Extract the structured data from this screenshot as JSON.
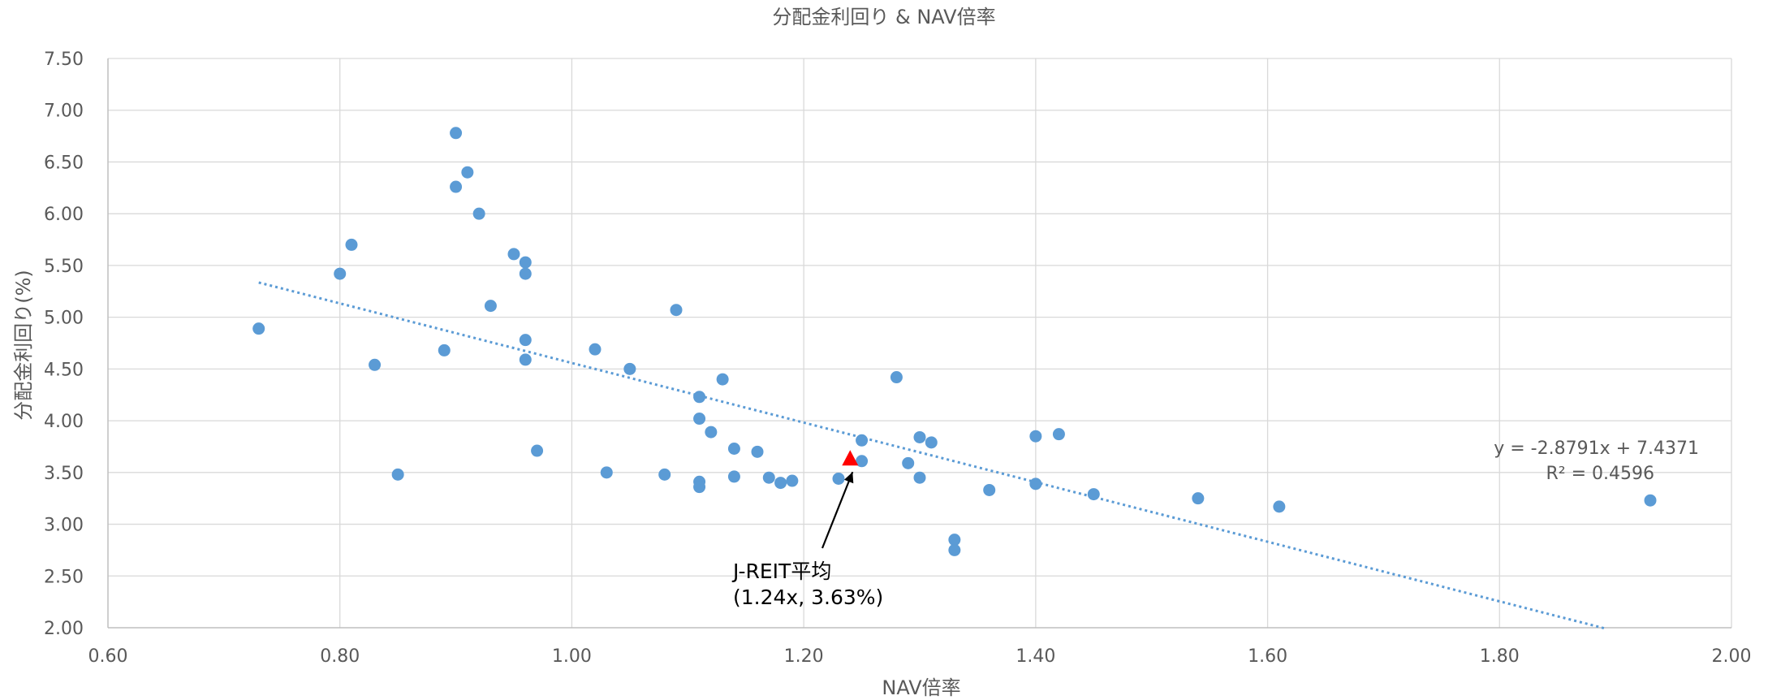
{
  "chart_data": {
    "type": "scatter",
    "title": "分配金利回り & NAV倍率",
    "xlabel": "NAV倍率",
    "ylabel": "分配金利回り(%)",
    "xlim": [
      0.6,
      2.0
    ],
    "ylim": [
      2.0,
      7.5
    ],
    "x_ticks": [
      "0.60",
      "0.80",
      "1.00",
      "1.20",
      "1.40",
      "1.60",
      "1.80",
      "2.00"
    ],
    "y_ticks": [
      "2.00",
      "2.50",
      "3.00",
      "3.50",
      "4.00",
      "4.50",
      "5.00",
      "5.50",
      "6.00",
      "6.50",
      "7.00",
      "7.50"
    ],
    "grid": true,
    "point_color": "#5B9BD5",
    "highlight_color": "#FF0000",
    "trendline_color": "#5B9BD5",
    "points": [
      {
        "x": 0.73,
        "y": 4.89
      },
      {
        "x": 0.8,
        "y": 5.42
      },
      {
        "x": 0.81,
        "y": 5.7
      },
      {
        "x": 0.83,
        "y": 4.54
      },
      {
        "x": 0.85,
        "y": 3.48
      },
      {
        "x": 0.89,
        "y": 4.68
      },
      {
        "x": 0.9,
        "y": 6.78
      },
      {
        "x": 0.9,
        "y": 6.26
      },
      {
        "x": 0.91,
        "y": 6.4
      },
      {
        "x": 0.92,
        "y": 6.0
      },
      {
        "x": 0.93,
        "y": 5.11
      },
      {
        "x": 0.95,
        "y": 5.61
      },
      {
        "x": 0.96,
        "y": 5.53
      },
      {
        "x": 0.96,
        "y": 5.42
      },
      {
        "x": 0.96,
        "y": 4.78
      },
      {
        "x": 0.96,
        "y": 4.59
      },
      {
        "x": 0.97,
        "y": 3.71
      },
      {
        "x": 1.02,
        "y": 4.69
      },
      {
        "x": 1.03,
        "y": 3.5
      },
      {
        "x": 1.05,
        "y": 4.5
      },
      {
        "x": 1.08,
        "y": 3.48
      },
      {
        "x": 1.09,
        "y": 5.07
      },
      {
        "x": 1.11,
        "y": 4.23
      },
      {
        "x": 1.11,
        "y": 4.02
      },
      {
        "x": 1.11,
        "y": 3.41
      },
      {
        "x": 1.11,
        "y": 3.36
      },
      {
        "x": 1.12,
        "y": 3.89
      },
      {
        "x": 1.13,
        "y": 4.4
      },
      {
        "x": 1.14,
        "y": 3.73
      },
      {
        "x": 1.14,
        "y": 3.46
      },
      {
        "x": 1.16,
        "y": 3.7
      },
      {
        "x": 1.17,
        "y": 3.45
      },
      {
        "x": 1.18,
        "y": 3.4
      },
      {
        "x": 1.19,
        "y": 3.42
      },
      {
        "x": 1.23,
        "y": 3.44
      },
      {
        "x": 1.25,
        "y": 3.81
      },
      {
        "x": 1.25,
        "y": 3.61
      },
      {
        "x": 1.28,
        "y": 4.42
      },
      {
        "x": 1.29,
        "y": 3.59
      },
      {
        "x": 1.3,
        "y": 3.84
      },
      {
        "x": 1.3,
        "y": 3.45
      },
      {
        "x": 1.31,
        "y": 3.79
      },
      {
        "x": 1.33,
        "y": 2.85
      },
      {
        "x": 1.33,
        "y": 2.75
      },
      {
        "x": 1.36,
        "y": 3.33
      },
      {
        "x": 1.4,
        "y": 3.85
      },
      {
        "x": 1.4,
        "y": 3.39
      },
      {
        "x": 1.42,
        "y": 3.87
      },
      {
        "x": 1.45,
        "y": 3.29
      },
      {
        "x": 1.54,
        "y": 3.25
      },
      {
        "x": 1.61,
        "y": 3.17
      },
      {
        "x": 1.93,
        "y": 3.23
      }
    ],
    "highlight": {
      "x": 1.24,
      "y": 3.63,
      "label_line1": "J-REIT平均",
      "label_line2": "(1.24x, 3.63%)"
    },
    "trendline": {
      "type": "linear",
      "slope": -2.8791,
      "intercept": 7.4371,
      "x_range": [
        0.73,
        1.89
      ],
      "equation": "y = -2.8791x + 7.4371",
      "r_squared": "R² = 0.4596"
    }
  }
}
